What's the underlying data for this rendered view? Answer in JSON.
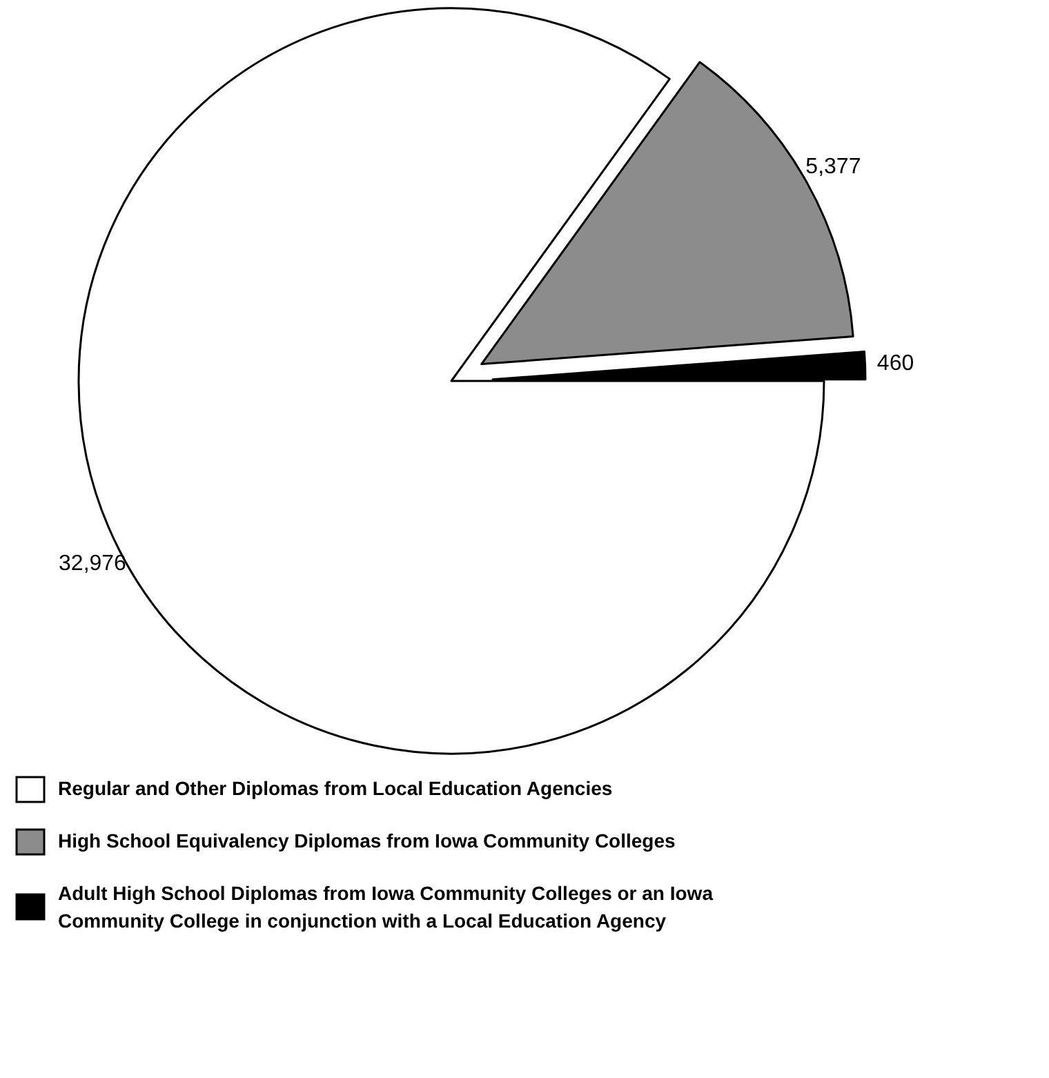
{
  "chart_data": {
    "type": "pie",
    "categories": [
      "Regular and Other Diplomas from Local Education Agencies",
      "High School Equivalency Diplomas from Iowa Community Colleges",
      "Adult High School Diplomas from Iowa Community Colleges or an Iowa Community College in conjunction with a Local Education Agency"
    ],
    "values": [
      32976,
      5377,
      460
    ],
    "value_labels": [
      "32,976",
      "5,377",
      "460"
    ],
    "colors": [
      "#ffffff",
      "#8c8c8c",
      "#000000"
    ],
    "legend": "bottom"
  }
}
